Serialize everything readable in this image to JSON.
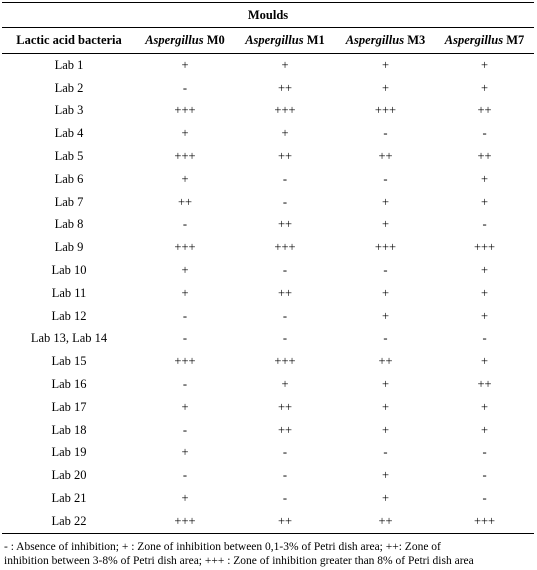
{
  "table": {
    "group_header": "Moulds",
    "row_header": "Lactic acid bacteria",
    "columns": [
      {
        "genus": "Aspergillus",
        "strain": "M0"
      },
      {
        "genus": "Aspergillus",
        "strain": "M1"
      },
      {
        "genus": "Aspergillus",
        "strain": "M3"
      },
      {
        "genus": "Aspergillus",
        "strain": "M7"
      }
    ],
    "rows": [
      {
        "lab": "Lab 1",
        "values": [
          "+",
          "+",
          "+",
          "+"
        ]
      },
      {
        "lab": "Lab 2",
        "values": [
          "-",
          "++",
          "+",
          "+"
        ]
      },
      {
        "lab": "Lab 3",
        "values": [
          "+++",
          "+++",
          "+++",
          "++"
        ]
      },
      {
        "lab": "Lab 4",
        "values": [
          "+",
          "+",
          "-",
          "-"
        ]
      },
      {
        "lab": "Lab 5",
        "values": [
          "+++",
          "++",
          "++",
          "++"
        ]
      },
      {
        "lab": "Lab 6",
        "values": [
          "+",
          "-",
          "-",
          "+"
        ]
      },
      {
        "lab": "Lab 7",
        "values": [
          "++",
          "-",
          "+",
          "+"
        ]
      },
      {
        "lab": "Lab 8",
        "values": [
          "-",
          "++",
          "+",
          "-"
        ]
      },
      {
        "lab": "Lab 9",
        "values": [
          "+++",
          "+++",
          "+++",
          "+++"
        ]
      },
      {
        "lab": "Lab 10",
        "values": [
          "+",
          "-",
          "-",
          "+"
        ]
      },
      {
        "lab": "Lab 11",
        "values": [
          "+",
          "++",
          "+",
          "+"
        ]
      },
      {
        "lab": "Lab 12",
        "values": [
          "-",
          "-",
          "+",
          "+"
        ]
      },
      {
        "lab": "Lab 13, Lab 14",
        "values": [
          "-",
          "-",
          "-",
          "-"
        ]
      },
      {
        "lab": "Lab 15",
        "values": [
          "+++",
          "+++",
          "++",
          "+"
        ]
      },
      {
        "lab": "Lab 16",
        "values": [
          "-",
          "+",
          "+",
          "++"
        ]
      },
      {
        "lab": "Lab 17",
        "values": [
          "+",
          "++",
          "+",
          "+"
        ]
      },
      {
        "lab": "Lab 18",
        "values": [
          "-",
          "++",
          "+",
          "+"
        ]
      },
      {
        "lab": "Lab 19",
        "values": [
          "+",
          "-",
          "-",
          "-"
        ]
      },
      {
        "lab": "Lab 20",
        "values": [
          "-",
          "-",
          "+",
          "-"
        ]
      },
      {
        "lab": "Lab 21",
        "values": [
          "+",
          "-",
          "+",
          "-"
        ]
      },
      {
        "lab": "Lab 22",
        "values": [
          "+++",
          "++",
          "++",
          "+++"
        ]
      }
    ]
  },
  "footnote": {
    "line1": "- : Absence of inhibition; + : Zone of inhibition between 0,1-3% of Petri dish area; ++: Zone of",
    "line2": "inhibition between 3-8% of Petri dish area; +++ : Zone of inhibition greater than 8% of Petri dish area"
  }
}
